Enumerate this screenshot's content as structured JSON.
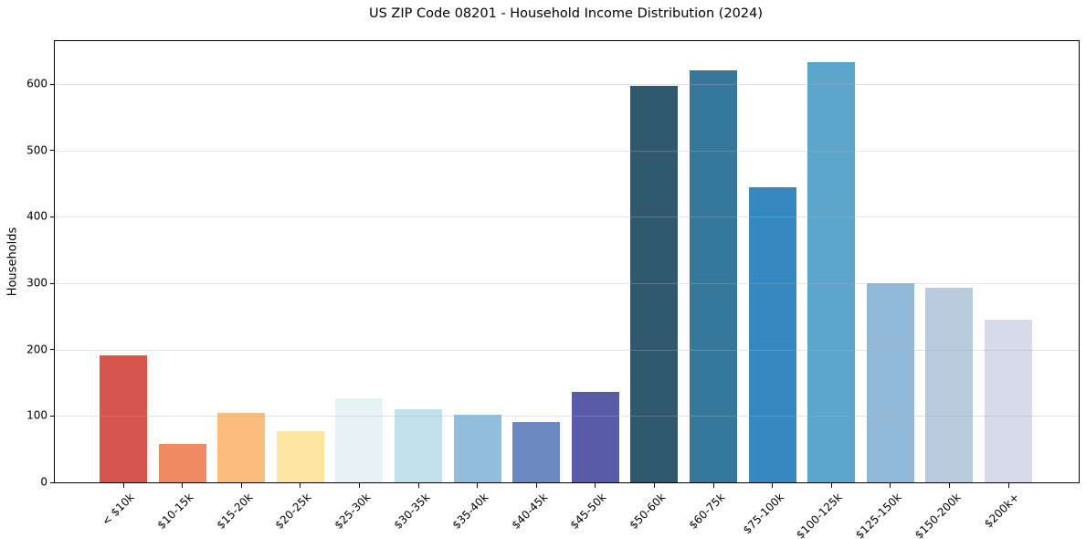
{
  "chart_data": {
    "type": "bar",
    "title": "US ZIP Code 08201 - Household Income Distribution (2024)",
    "xlabel": "",
    "ylabel": "Households",
    "categories": [
      "< $10k",
      "$10-15k",
      "$15-20k",
      "$20-25k",
      "$25-30k",
      "$30-35k",
      "$35-40k",
      "$40-45k",
      "$45-50k",
      "$50-60k",
      "$60-75k",
      "$75-100k",
      "$100-125k",
      "$125-150k",
      "$150-200k",
      "$200k+"
    ],
    "values": [
      191,
      58,
      105,
      77,
      127,
      110,
      102,
      91,
      137,
      597,
      621,
      445,
      633,
      300,
      293,
      245
    ],
    "bar_colors": [
      "#d6564f",
      "#f18a64",
      "#fabd7d",
      "#fde5a4",
      "#e7f2f5",
      "#c3e1ed",
      "#92bedb",
      "#6a89c3",
      "#5a5ba8",
      "#31596e",
      "#36789c",
      "#3589c0",
      "#5ca6cc",
      "#92b9d8",
      "#b8cade",
      "#d7dae8"
    ],
    "yticks": [
      0,
      100,
      200,
      300,
      400,
      500,
      600
    ],
    "ylim": [
      0,
      665
    ],
    "grid": "horizontal",
    "grid_color": "#b0b0b0",
    "text_color": "#000000",
    "legend": "none",
    "background_color": "#ffffff"
  }
}
